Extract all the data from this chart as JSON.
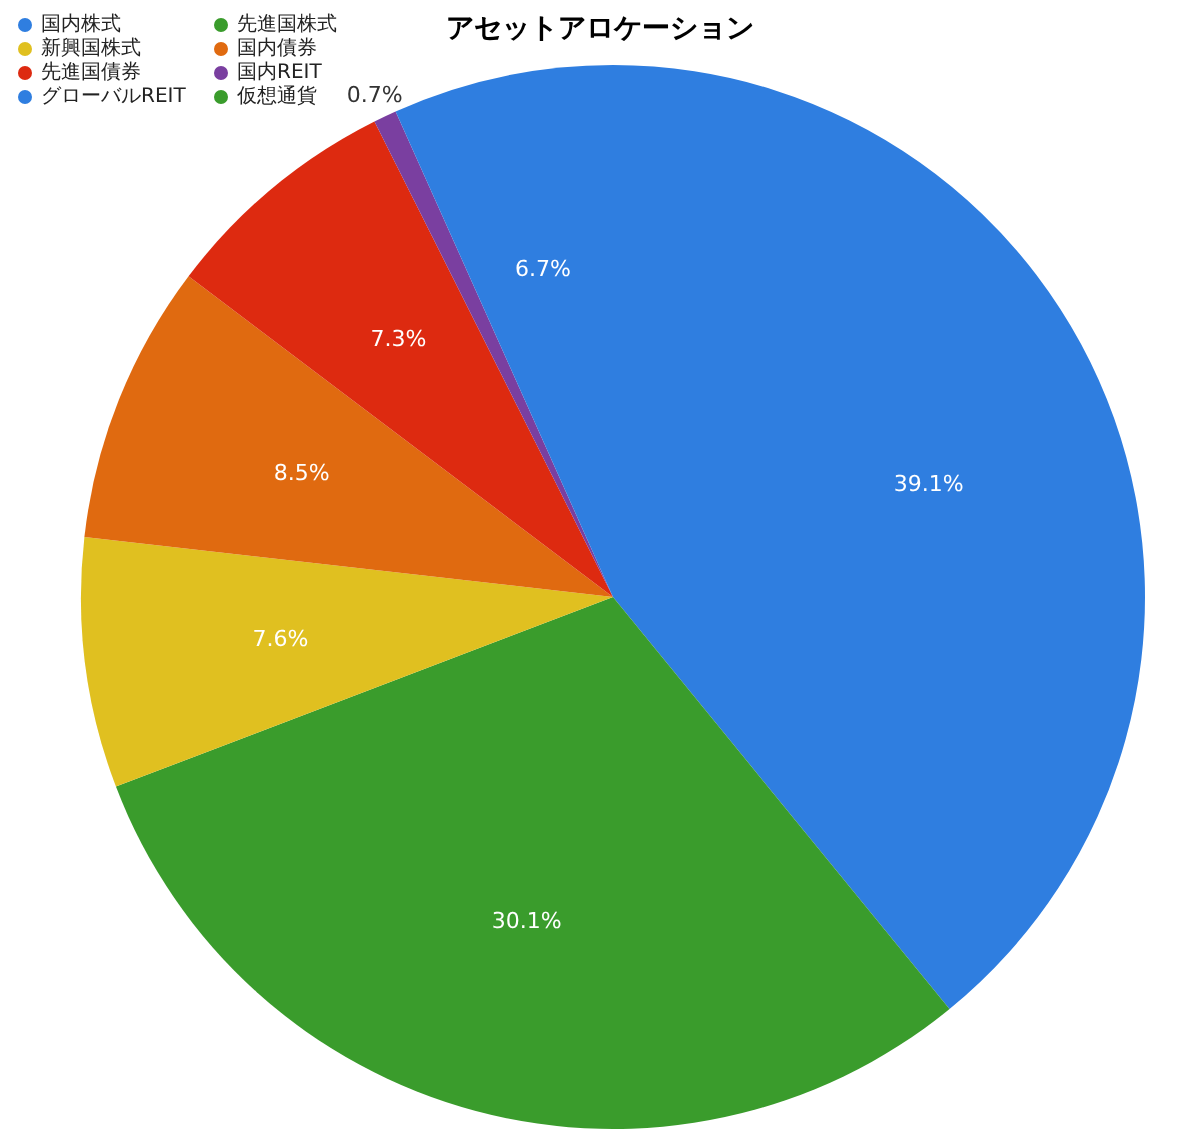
{
  "chart_data": {
    "type": "pie",
    "title": "アセットアロケーション",
    "categories": [
      "国内株式",
      "先進国株式",
      "新興国株式",
      "国内債券",
      "先進国債券",
      "国内REIT",
      "グローバルREIT",
      "仮想通貨"
    ],
    "values": [
      39.1,
      30.1,
      7.6,
      8.5,
      7.3,
      0.7,
      6.7,
      0
    ],
    "colors": [
      "#2f7ee0",
      "#3a9c2c",
      "#e0c020",
      "#e06a10",
      "#dd2a10",
      "#7a3fa0",
      "#2f7ee0",
      "#3a9c2c"
    ],
    "value_labels": [
      "39.1%",
      "30.1%",
      "7.6%",
      "8.5%",
      "7.3%",
      "0.7%",
      "6.7%",
      null
    ],
    "legend": "top left"
  }
}
